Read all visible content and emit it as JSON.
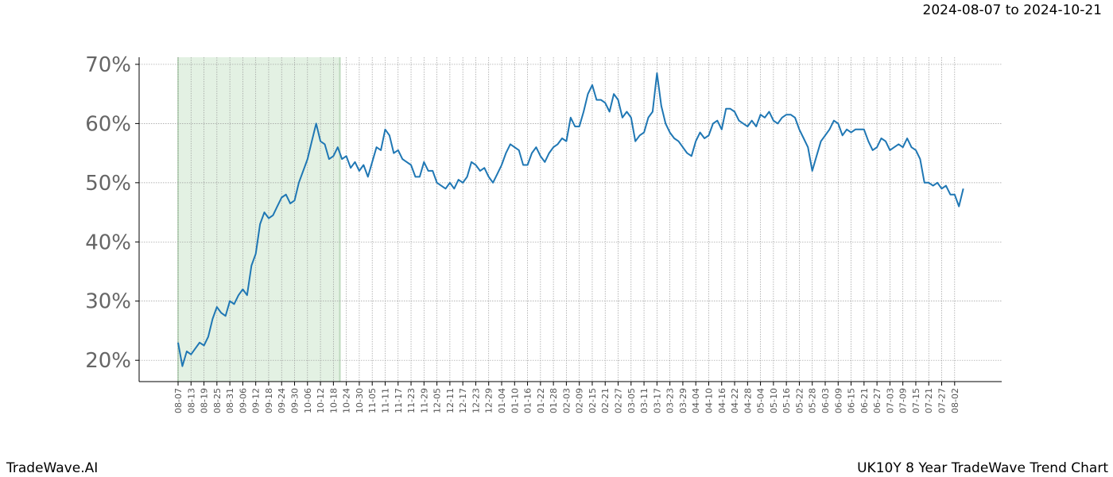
{
  "chart_data": {
    "type": "line",
    "title": "2024-08-07 to 2024-10-21",
    "footer_left": "TradeWave.AI",
    "footer_right": "UK10Y 8 Year TradeWave Trend Chart",
    "categories": [
      "08-07",
      null,
      null,
      "08-13",
      null,
      null,
      "08-19",
      null,
      null,
      "08-25",
      null,
      null,
      "08-31",
      null,
      null,
      "09-06",
      null,
      null,
      "09-12",
      null,
      null,
      "09-18",
      null,
      null,
      "09-24",
      null,
      null,
      "09-30",
      null,
      null,
      "10-06",
      null,
      null,
      "10-12",
      null,
      null,
      "10-18",
      null,
      null,
      "10-24",
      null,
      null,
      "10-30",
      null,
      null,
      "11-05",
      null,
      null,
      "11-11",
      null,
      null,
      "11-17",
      null,
      null,
      "11-23",
      null,
      null,
      "11-29",
      null,
      null,
      "12-05",
      null,
      null,
      "12-11",
      null,
      null,
      "12-17",
      null,
      null,
      "12-23",
      null,
      null,
      "12-29",
      null,
      null,
      "01-04",
      null,
      null,
      "01-10",
      null,
      null,
      "01-16",
      null,
      null,
      "01-22",
      null,
      null,
      "01-28",
      null,
      null,
      "02-03",
      null,
      null,
      "02-09",
      null,
      null,
      "02-15",
      null,
      null,
      "02-21",
      null,
      null,
      "02-27",
      null,
      null,
      "03-05",
      null,
      null,
      "03-11",
      null,
      null,
      "03-17",
      null,
      null,
      "03-23",
      null,
      null,
      "03-29",
      null,
      null,
      "04-04",
      null,
      null,
      "04-10",
      null,
      null,
      "04-16",
      null,
      null,
      "04-22",
      null,
      null,
      "04-28",
      null,
      null,
      "05-04",
      null,
      null,
      "05-10",
      null,
      null,
      "05-16",
      null,
      null,
      "05-22",
      null,
      null,
      "05-28",
      null,
      null,
      "06-03",
      null,
      null,
      "06-09",
      null,
      null,
      "06-15",
      null,
      null,
      "06-21",
      null,
      null,
      "06-27",
      null,
      null,
      "07-03",
      null,
      null,
      "07-09",
      null,
      null,
      "07-15",
      null,
      null,
      "07-21",
      null,
      null,
      "07-27",
      null,
      null,
      "08-02",
      null,
      null
    ],
    "series": [
      {
        "color": "#1f77b4",
        "values": [
          23,
          19,
          21.5,
          21,
          22,
          23,
          22.5,
          24,
          27,
          29,
          28,
          27.5,
          30,
          29.5,
          31,
          32,
          31,
          36,
          38,
          43,
          45,
          44,
          44.5,
          46,
          47.5,
          48,
          46.5,
          47,
          50,
          52,
          54,
          57,
          60,
          57,
          56.5,
          54,
          54.5,
          56,
          54,
          54.5,
          52.5,
          53.5,
          52,
          53,
          51,
          53.5,
          56,
          55.5,
          59,
          58,
          55,
          55.5,
          54,
          53.5,
          53,
          51,
          51,
          53.5,
          52,
          52,
          50,
          49.5,
          49,
          50,
          49,
          50.5,
          50,
          51,
          53.5,
          53,
          52,
          52.5,
          51,
          50,
          51.5,
          53,
          55,
          56.5,
          56,
          55.5,
          53,
          53,
          55,
          56,
          54.5,
          53.5,
          55,
          56,
          56.5,
          57.5,
          57,
          61,
          59.5,
          59.5,
          62,
          65,
          66.5,
          64,
          64,
          63.5,
          62,
          65,
          64,
          61,
          62,
          61,
          57,
          58,
          58.5,
          61,
          62,
          68.5,
          63,
          60,
          58.5,
          57.5,
          57,
          56,
          55,
          54.5,
          57,
          58.5,
          57.5,
          58,
          60,
          60.5,
          59,
          62.5,
          62.5,
          62,
          60.5,
          60,
          59.5,
          60.5,
          59.5,
          61.5,
          61,
          62,
          60.5,
          60,
          61,
          61.5,
          61.5,
          61,
          59,
          57.5,
          56,
          52,
          54.5,
          57,
          58,
          59,
          60.5,
          60,
          58,
          59,
          58.5,
          59,
          59,
          59,
          57,
          55.5,
          56,
          57.5,
          57,
          55.5,
          56,
          56.5,
          56,
          57.5,
          56,
          55.5,
          54,
          50,
          50,
          49.5,
          50,
          49,
          49.5,
          48,
          48,
          46,
          49
        ]
      }
    ],
    "ylim": [
      16.4,
      71.2
    ],
    "yticks": [
      {
        "value": 20,
        "label": "20%"
      },
      {
        "value": 30,
        "label": "30%"
      },
      {
        "value": 40,
        "label": "40%"
      },
      {
        "value": 50,
        "label": "50%"
      },
      {
        "value": 60,
        "label": "60%"
      },
      {
        "value": 70,
        "label": "70%"
      }
    ],
    "highlight": [
      0,
      37.5
    ],
    "highlight_color": "#e3f1e3",
    "grid": true
  }
}
